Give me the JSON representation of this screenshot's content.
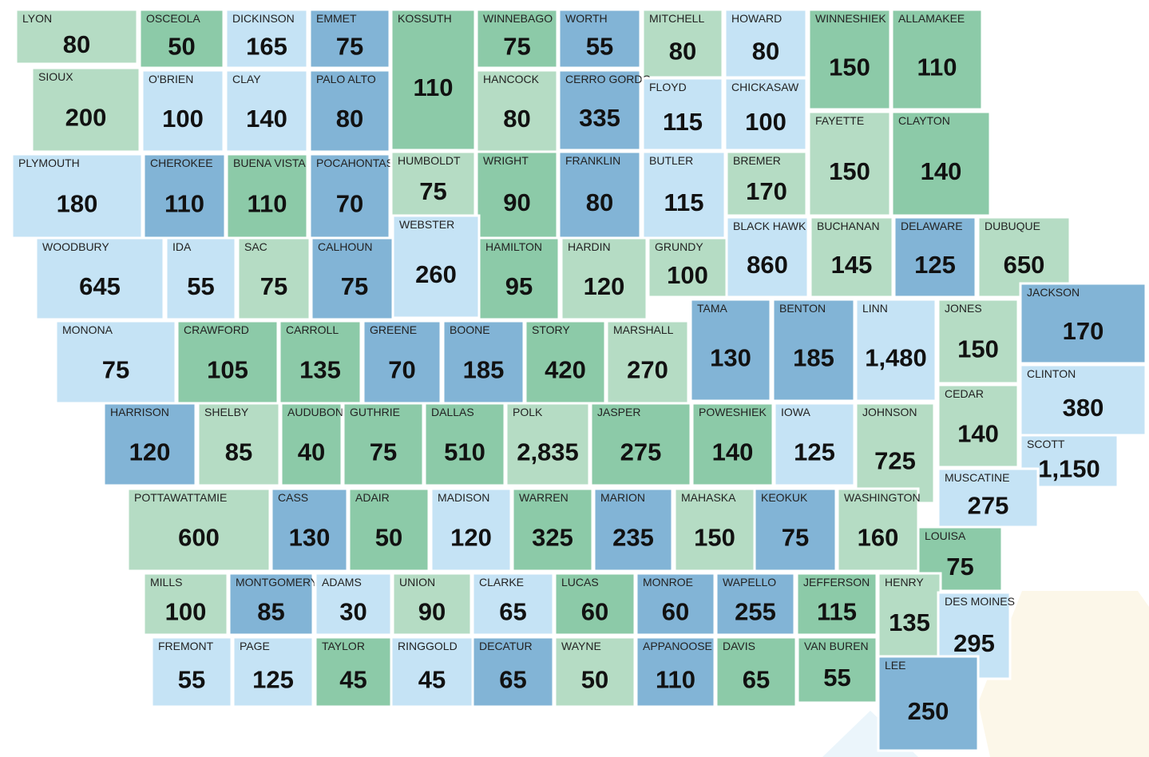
{
  "counties": [
    {
      "name": "LYON",
      "value": 80,
      "color": "#b5dcc4"
    },
    {
      "name": "OSCEOLA",
      "value": 50,
      "color": "#8ccaa8"
    },
    {
      "name": "DICKINSON",
      "value": 165,
      "color": "#c5e3f5"
    },
    {
      "name": "EMMET",
      "value": 75,
      "color": "#82b4d6"
    },
    {
      "name": "KOSSUTH",
      "value": 110,
      "color": "#8ccaa8"
    },
    {
      "name": "WINNEBAGO",
      "value": 75,
      "color": "#8ccaa8"
    },
    {
      "name": "WORTH",
      "value": 55,
      "color": "#82b4d6"
    },
    {
      "name": "MITCHELL",
      "value": 80,
      "color": "#b5dcc4"
    },
    {
      "name": "HOWARD",
      "value": 80,
      "color": "#c5e3f5"
    },
    {
      "name": "WINNESHIEK",
      "value": 150,
      "color": "#8ccaa8"
    },
    {
      "name": "ALLAMAKEE",
      "value": 110,
      "color": "#8ccaa8"
    },
    {
      "name": "SIOUX",
      "value": 200,
      "color": "#b5dcc4"
    },
    {
      "name": "O'BRIEN",
      "value": 100,
      "color": "#c5e3f5"
    },
    {
      "name": "CLAY",
      "value": 140,
      "color": "#c5e3f5"
    },
    {
      "name": "PALO ALTO",
      "value": 80,
      "color": "#82b4d6"
    },
    {
      "name": "HANCOCK",
      "value": 80,
      "color": "#b5dcc4"
    },
    {
      "name": "CERRO GORDO",
      "value": 335,
      "color": "#82b4d6"
    },
    {
      "name": "FLOYD",
      "value": 115,
      "color": "#c5e3f5"
    },
    {
      "name": "CHICKASAW",
      "value": 100,
      "color": "#c5e3f5"
    },
    {
      "name": "FAYETTE",
      "value": 150,
      "color": "#b5dcc4"
    },
    {
      "name": "CLAYTON",
      "value": 140,
      "color": "#8ccaa8"
    },
    {
      "name": "PLYMOUTH",
      "value": 180,
      "color": "#c5e3f5"
    },
    {
      "name": "CHEROKEE",
      "value": 110,
      "color": "#82b4d6"
    },
    {
      "name": "BUENA VISTA",
      "value": 110,
      "color": "#8ccaa8"
    },
    {
      "name": "POCAHONTAS",
      "value": 70,
      "color": "#82b4d6"
    },
    {
      "name": "HUMBOLDT",
      "value": 75,
      "color": "#b5dcc4"
    },
    {
      "name": "WRIGHT",
      "value": 90,
      "color": "#8ccaa8"
    },
    {
      "name": "FRANKLIN",
      "value": 80,
      "color": "#82b4d6"
    },
    {
      "name": "BUTLER",
      "value": 115,
      "color": "#c5e3f5"
    },
    {
      "name": "BREMER",
      "value": 170,
      "color": "#b5dcc4"
    },
    {
      "name": "BLACK HAWK",
      "value": 860,
      "color": "#c5e3f5"
    },
    {
      "name": "BUCHANAN",
      "value": 145,
      "color": "#b5dcc4"
    },
    {
      "name": "DELAWARE",
      "value": 125,
      "color": "#82b4d6"
    },
    {
      "name": "DUBUQUE",
      "value": 650,
      "color": "#b5dcc4"
    },
    {
      "name": "WOODBURY",
      "value": 645,
      "color": "#c5e3f5"
    },
    {
      "name": "IDA",
      "value": 55,
      "color": "#c5e3f5"
    },
    {
      "name": "SAC",
      "value": 75,
      "color": "#b5dcc4"
    },
    {
      "name": "CALHOUN",
      "value": 75,
      "color": "#82b4d6"
    },
    {
      "name": "WEBSTER",
      "value": 260,
      "color": "#c5e3f5"
    },
    {
      "name": "HAMILTON",
      "value": 95,
      "color": "#8ccaa8"
    },
    {
      "name": "HARDIN",
      "value": 120,
      "color": "#b5dcc4"
    },
    {
      "name": "GRUNDY",
      "value": 100,
      "color": "#b5dcc4"
    },
    {
      "name": "TAMA",
      "value": 130,
      "color": "#82b4d6"
    },
    {
      "name": "BENTON",
      "value": 185,
      "color": "#82b4d6"
    },
    {
      "name": "LINN",
      "value": 1480,
      "value_label": "1,480",
      "color": "#c5e3f5"
    },
    {
      "name": "JONES",
      "value": 150,
      "color": "#b5dcc4"
    },
    {
      "name": "JACKSON",
      "value": 170,
      "color": "#82b4d6"
    },
    {
      "name": "MONONA",
      "value": 75,
      "color": "#c5e3f5"
    },
    {
      "name": "CRAWFORD",
      "value": 105,
      "color": "#8ccaa8"
    },
    {
      "name": "CARROLL",
      "value": 135,
      "color": "#8ccaa8"
    },
    {
      "name": "GREENE",
      "value": 70,
      "color": "#82b4d6"
    },
    {
      "name": "BOONE",
      "value": 185,
      "color": "#82b4d6"
    },
    {
      "name": "STORY",
      "value": 420,
      "color": "#8ccaa8"
    },
    {
      "name": "MARSHALL",
      "value": 270,
      "color": "#b5dcc4"
    },
    {
      "name": "CLINTON",
      "value": 380,
      "color": "#c5e3f5"
    },
    {
      "name": "CEDAR",
      "value": 140,
      "color": "#b5dcc4"
    },
    {
      "name": "HARRISON",
      "value": 120,
      "color": "#82b4d6"
    },
    {
      "name": "SHELBY",
      "value": 85,
      "color": "#b5dcc4"
    },
    {
      "name": "AUDUBON",
      "value": 40,
      "color": "#8ccaa8"
    },
    {
      "name": "GUTHRIE",
      "value": 75,
      "color": "#8ccaa8"
    },
    {
      "name": "DALLAS",
      "value": 510,
      "color": "#8ccaa8"
    },
    {
      "name": "POLK",
      "value": 2835,
      "value_label": "2,835",
      "color": "#b5dcc4"
    },
    {
      "name": "JASPER",
      "value": 275,
      "color": "#8ccaa8"
    },
    {
      "name": "POWESHIEK",
      "value": 140,
      "color": "#8ccaa8"
    },
    {
      "name": "IOWA",
      "value": 125,
      "color": "#c5e3f5"
    },
    {
      "name": "JOHNSON",
      "value": 725,
      "color": "#b5dcc4"
    },
    {
      "name": "SCOTT",
      "value": 1150,
      "value_label": "1,150",
      "color": "#c5e3f5"
    },
    {
      "name": "MUSCATINE",
      "value": 275,
      "color": "#c5e3f5"
    },
    {
      "name": "POTTAWATTAMIE",
      "value": 600,
      "color": "#b5dcc4"
    },
    {
      "name": "CASS",
      "value": 130,
      "color": "#82b4d6"
    },
    {
      "name": "ADAIR",
      "value": 50,
      "color": "#8ccaa8"
    },
    {
      "name": "MADISON",
      "value": 120,
      "color": "#c5e3f5"
    },
    {
      "name": "WARREN",
      "value": 325,
      "color": "#8ccaa8"
    },
    {
      "name": "MARION",
      "value": 235,
      "color": "#82b4d6"
    },
    {
      "name": "MAHASKA",
      "value": 150,
      "color": "#b5dcc4"
    },
    {
      "name": "KEOKUK",
      "value": 75,
      "color": "#82b4d6"
    },
    {
      "name": "WASHINGTON",
      "value": 160,
      "color": "#b5dcc4"
    },
    {
      "name": "LOUISA",
      "value": 75,
      "color": "#8ccaa8"
    },
    {
      "name": "MILLS",
      "value": 100,
      "color": "#b5dcc4"
    },
    {
      "name": "MONTGOMERY",
      "value": 85,
      "color": "#82b4d6"
    },
    {
      "name": "ADAMS",
      "value": 30,
      "color": "#c5e3f5"
    },
    {
      "name": "UNION",
      "value": 90,
      "color": "#b5dcc4"
    },
    {
      "name": "CLARKE",
      "value": 65,
      "color": "#c5e3f5"
    },
    {
      "name": "LUCAS",
      "value": 60,
      "color": "#8ccaa8"
    },
    {
      "name": "MONROE",
      "value": 60,
      "color": "#82b4d6"
    },
    {
      "name": "WAPELLO",
      "value": 255,
      "color": "#82b4d6"
    },
    {
      "name": "JEFFERSON",
      "value": 115,
      "color": "#8ccaa8"
    },
    {
      "name": "HENRY",
      "value": 135,
      "color": "#b5dcc4"
    },
    {
      "name": "DES MOINES",
      "value": 295,
      "color": "#c5e3f5"
    },
    {
      "name": "FREMONT",
      "value": 55,
      "color": "#c5e3f5"
    },
    {
      "name": "PAGE",
      "value": 125,
      "color": "#c5e3f5"
    },
    {
      "name": "TAYLOR",
      "value": 45,
      "color": "#8ccaa8"
    },
    {
      "name": "RINGGOLD",
      "value": 45,
      "color": "#c5e3f5"
    },
    {
      "name": "DECATUR",
      "value": 65,
      "color": "#82b4d6"
    },
    {
      "name": "WAYNE",
      "value": 50,
      "color": "#b5dcc4"
    },
    {
      "name": "APPANOOSE",
      "value": 110,
      "color": "#82b4d6"
    },
    {
      "name": "DAVIS",
      "value": 65,
      "color": "#8ccaa8"
    },
    {
      "name": "VAN BUREN",
      "value": 55,
      "color": "#8ccaa8"
    },
    {
      "name": "LEE",
      "value": 250,
      "color": "#82b4d6"
    }
  ]
}
